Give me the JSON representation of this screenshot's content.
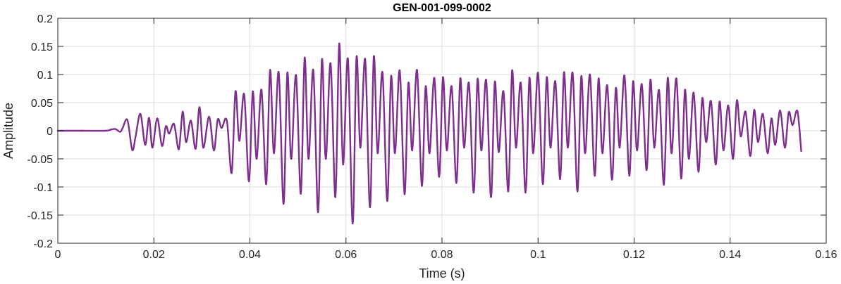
{
  "chart_data": {
    "type": "line",
    "title": "GEN-001-099-0002",
    "xlabel": "Time (s)",
    "ylabel": "Amplitude",
    "xlim": [
      0,
      0.16
    ],
    "ylim": [
      -0.2,
      0.2
    ],
    "xticks": [
      0,
      0.02,
      0.04,
      0.06,
      0.08,
      0.1,
      0.12,
      0.14,
      0.16
    ],
    "xtick_labels": [
      "0",
      "0.02",
      "0.04",
      "0.06",
      "0.08",
      "0.1",
      "0.12",
      "0.14",
      "0.16"
    ],
    "yticks": [
      -0.2,
      -0.15,
      -0.1,
      -0.05,
      0,
      0.05,
      0.1,
      0.15,
      0.2
    ],
    "ytick_labels": [
      "-0.2",
      "-0.15",
      "-0.1",
      "-0.05",
      "0",
      "0.05",
      "0.1",
      "0.15",
      "0.2"
    ],
    "grid": true,
    "line_color": "#7E2F8E",
    "series": [
      {
        "x": [
          0,
          0.005,
          0.01,
          0.011,
          0.012,
          0.013,
          0.0135,
          0.0145,
          0.0155,
          0.0162,
          0.0172,
          0.0182,
          0.019,
          0.0197,
          0.0207,
          0.0217,
          0.0225,
          0.0232,
          0.0242,
          0.0252,
          0.026,
          0.0267,
          0.0277,
          0.0287,
          0.0295,
          0.0303,
          0.0315,
          0.0325,
          0.0333,
          0.0341,
          0.0352,
          0.0362,
          0.037,
          0.0378,
          0.0388,
          0.0398,
          0.0406,
          0.0414,
          0.0424,
          0.0434,
          0.0442,
          0.045,
          0.046,
          0.047,
          0.0478,
          0.0486,
          0.0496,
          0.0506,
          0.0514,
          0.0522,
          0.0532,
          0.0542,
          0.055,
          0.0558,
          0.0568,
          0.0578,
          0.0586,
          0.0594,
          0.0604,
          0.0614,
          0.0622,
          0.063,
          0.064,
          0.065,
          0.0658,
          0.0666,
          0.0676,
          0.0686,
          0.0694,
          0.0702,
          0.0712,
          0.0722,
          0.073,
          0.0738,
          0.0748,
          0.0758,
          0.0766,
          0.0774,
          0.0784,
          0.0794,
          0.0802,
          0.081,
          0.082,
          0.083,
          0.0838,
          0.0846,
          0.0856,
          0.0866,
          0.0874,
          0.0882,
          0.0892,
          0.0902,
          0.091,
          0.0918,
          0.0928,
          0.0938,
          0.0946,
          0.0954,
          0.0964,
          0.0974,
          0.0982,
          0.099,
          0.1,
          0.101,
          0.1018,
          0.1026,
          0.1036,
          0.1046,
          0.1054,
          0.1062,
          0.1072,
          0.1082,
          0.109,
          0.1098,
          0.1108,
          0.1118,
          0.1126,
          0.1134,
          0.1144,
          0.1154,
          0.1162,
          0.117,
          0.118,
          0.119,
          0.1198,
          0.1206,
          0.1216,
          0.1226,
          0.1234,
          0.1242,
          0.1252,
          0.1262,
          0.127,
          0.1278,
          0.1288,
          0.1298,
          0.1306,
          0.1314,
          0.1324,
          0.1334,
          0.1342,
          0.135,
          0.136,
          0.137,
          0.1378,
          0.1386,
          0.1396,
          0.1406,
          0.1414,
          0.1422,
          0.1432,
          0.1442,
          0.145,
          0.1458,
          0.1468,
          0.1478,
          0.1486,
          0.1494,
          0.1504,
          0.1514,
          0.1522,
          0.153,
          0.154,
          0.1548
        ],
        "y": [
          0.0,
          0.0,
          0.0,
          0.002,
          0.003,
          -0.002,
          0.005,
          0.019,
          -0.034,
          -0.01,
          0.03,
          -0.025,
          0.023,
          -0.03,
          0.022,
          -0.027,
          0.008,
          -0.005,
          0.012,
          -0.033,
          0.034,
          -0.02,
          0.018,
          -0.032,
          0.042,
          -0.03,
          0.025,
          -0.035,
          0.02,
          0.005,
          0.018,
          -0.075,
          0.07,
          -0.018,
          0.065,
          -0.09,
          0.07,
          -0.05,
          0.073,
          -0.095,
          0.108,
          -0.04,
          0.104,
          -0.13,
          0.103,
          -0.05,
          0.099,
          -0.112,
          0.13,
          -0.05,
          0.108,
          -0.145,
          0.127,
          -0.05,
          0.12,
          -0.118,
          0.155,
          -0.06,
          0.128,
          -0.165,
          0.131,
          -0.03,
          0.127,
          -0.136,
          0.132,
          -0.04,
          0.104,
          -0.125,
          0.097,
          -0.04,
          0.107,
          -0.113,
          0.085,
          -0.035,
          0.108,
          -0.098,
          0.079,
          -0.04,
          0.094,
          -0.082,
          0.095,
          -0.035,
          0.079,
          -0.093,
          0.093,
          -0.03,
          0.085,
          -0.11,
          0.092,
          -0.035,
          0.09,
          -0.118,
          0.087,
          -0.038,
          0.07,
          -0.108,
          0.107,
          -0.03,
          0.085,
          -0.11,
          0.094,
          -0.04,
          0.103,
          -0.095,
          0.095,
          -0.03,
          0.088,
          -0.086,
          0.104,
          -0.03,
          0.103,
          -0.108,
          0.097,
          -0.04,
          0.1,
          -0.08,
          0.093,
          -0.04,
          0.081,
          -0.087,
          0.076,
          -0.03,
          0.098,
          -0.08,
          0.088,
          -0.035,
          0.083,
          -0.07,
          0.091,
          -0.03,
          0.072,
          -0.096,
          0.094,
          -0.04,
          0.093,
          -0.085,
          0.073,
          -0.05,
          0.068,
          -0.073,
          0.058,
          -0.02,
          0.053,
          -0.06,
          0.052,
          -0.035,
          0.045,
          -0.05,
          0.054,
          -0.01,
          0.034,
          -0.045,
          0.037,
          -0.02,
          0.03,
          -0.04,
          0.022,
          -0.025,
          0.036,
          -0.03,
          0.033,
          0.01,
          0.035,
          -0.036
        ]
      }
    ]
  }
}
